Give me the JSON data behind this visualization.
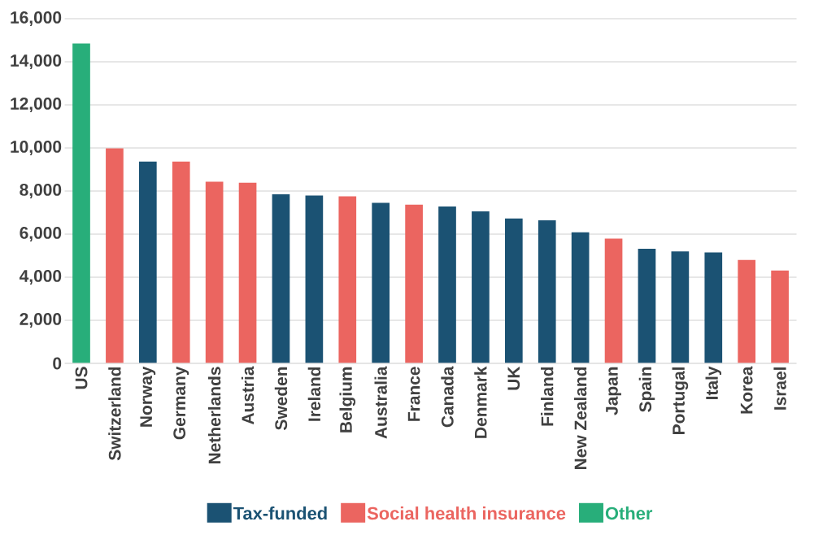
{
  "chart_data": {
    "type": "bar",
    "categories": [
      "US",
      "Switzerland",
      "Norway",
      "Germany",
      "Netherlands",
      "Austria",
      "Sweden",
      "Ireland",
      "Belgium",
      "Australia",
      "France",
      "Canada",
      "Denmark",
      "UK",
      "Finland",
      "New Zealand",
      "Japan",
      "Spain",
      "Portugal",
      "Italy",
      "Korea",
      "Israel"
    ],
    "series": [
      {
        "name": "Tax-funded",
        "color": "#1b5273",
        "values": [
          null,
          null,
          9370,
          null,
          null,
          null,
          7850,
          7790,
          null,
          7450,
          null,
          7280,
          7060,
          6730,
          6640,
          6080,
          null,
          5320,
          5200,
          5150,
          null,
          null
        ]
      },
      {
        "name": "Social health insurance",
        "color": "#eb6560",
        "values": [
          null,
          9980,
          null,
          9370,
          8430,
          8390,
          null,
          null,
          7750,
          null,
          7370,
          null,
          null,
          null,
          null,
          null,
          5790,
          null,
          null,
          null,
          4800,
          4310
        ]
      },
      {
        "name": "Other",
        "color": "#28ae7a",
        "values": [
          14850,
          null,
          null,
          null,
          null,
          null,
          null,
          null,
          null,
          null,
          null,
          null,
          null,
          null,
          null,
          null,
          null,
          null,
          null,
          null,
          null,
          null
        ]
      }
    ],
    "ylim": [
      0,
      16000
    ],
    "yticks": [
      {
        "value": 0,
        "label": "0"
      },
      {
        "value": 2000,
        "label": "2,000"
      },
      {
        "value": 4000,
        "label": "4,000"
      },
      {
        "value": 6000,
        "label": "6,000"
      },
      {
        "value": 8000,
        "label": "8,000"
      },
      {
        "value": 10000,
        "label": "10,000"
      },
      {
        "value": 12000,
        "label": "12,000"
      },
      {
        "value": 14000,
        "label": "14,000"
      },
      {
        "value": 16000,
        "label": "16,000"
      }
    ],
    "grid": "y",
    "legend": "bottom"
  }
}
